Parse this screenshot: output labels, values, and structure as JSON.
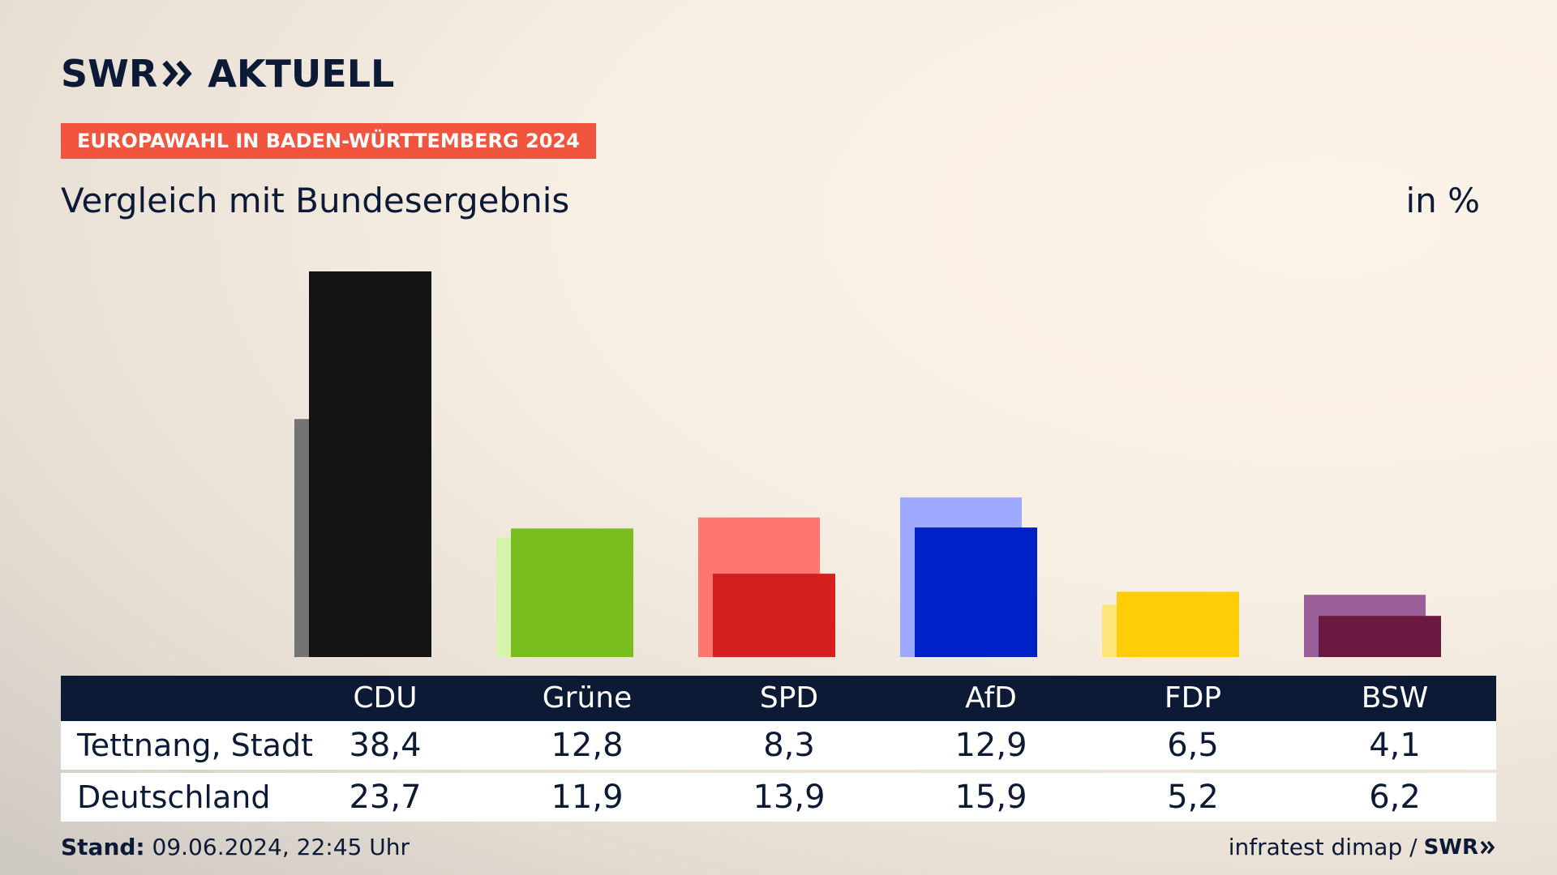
{
  "brand": {
    "logo_left": "SWR",
    "logo_right": "AKTUELL",
    "colors": {
      "navy": "#0c1a35",
      "tag": "#f1553e"
    }
  },
  "tag": "EUROPAWAHL IN BADEN-WÜRTTEMBERG 2024",
  "subtitle": "Vergleich mit Bundesergebnis",
  "unit": "in %",
  "table": {
    "rows": [
      "Tettnang, Stadt",
      "Deutschland"
    ]
  },
  "footer": {
    "stand_label": "Stand:",
    "stand_value": "09.06.2024, 22:45 Uhr",
    "source": "infratest dimap /",
    "source_brand": "SWR"
  },
  "chart_data": {
    "type": "bar",
    "categories": [
      "CDU",
      "Grüne",
      "SPD",
      "AfD",
      "FDP",
      "BSW"
    ],
    "series": [
      {
        "name": "Tettnang, Stadt",
        "values": [
          38.4,
          12.8,
          8.3,
          12.9,
          6.5,
          4.1
        ],
        "colors": [
          "#141414",
          "#78be1e",
          "#d61f1f",
          "#0021c8",
          "#ffcc08",
          "#6b1940"
        ]
      },
      {
        "name": "Deutschland",
        "values": [
          23.7,
          11.9,
          13.9,
          15.9,
          5.2,
          6.2
        ],
        "colors": [
          "#737373",
          "#d5f5ab",
          "#ff7570",
          "#9daaff",
          "#ffe47a",
          "#9a5f9a"
        ]
      }
    ],
    "ylim": [
      0,
      40
    ],
    "grid": false
  }
}
